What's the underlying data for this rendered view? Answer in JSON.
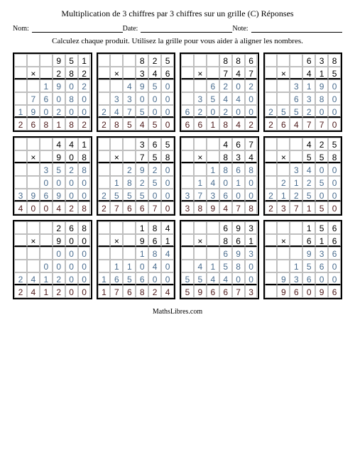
{
  "title": "Multiplication de 3 chiffres par 3 chiffres sur un grille (C) Réponses",
  "header": {
    "nom": "Nom:",
    "date": "Date:",
    "note": "Note:"
  },
  "instruction": "Calculez chaque produit. Utilisez la grille pour vous aider à aligner les nombres.",
  "footer": "MathsLibres.com",
  "colors": {
    "operand": "#000000",
    "partial": "#4a6d8f",
    "result": "#4d1a1a",
    "grid": "#bfbfbf"
  },
  "mult_sign": "×",
  "problems": [
    {
      "a": "951",
      "b": "282",
      "partials": [
        "1902",
        "76080",
        "190200"
      ],
      "result": "268182"
    },
    {
      "a": "825",
      "b": "346",
      "partials": [
        "4950",
        "33000",
        "247500"
      ],
      "result": "285450"
    },
    {
      "a": "886",
      "b": "747",
      "partials": [
        "6202",
        "35440",
        "620200"
      ],
      "result": "661842"
    },
    {
      "a": "638",
      "b": "415",
      "partials": [
        "3190",
        "6380",
        "255200"
      ],
      "result": "264770"
    },
    {
      "a": "441",
      "b": "908",
      "partials": [
        "3528",
        "0000",
        "396900"
      ],
      "result": "400428"
    },
    {
      "a": "365",
      "b": "758",
      "partials": [
        "2920",
        "18250",
        "255500"
      ],
      "result": "276670"
    },
    {
      "a": "467",
      "b": "834",
      "partials": [
        "1868",
        "14010",
        "373600"
      ],
      "result": "389478"
    },
    {
      "a": "425",
      "b": "558",
      "partials": [
        "3400",
        "21250",
        "212500"
      ],
      "result": "237150"
    },
    {
      "a": "268",
      "b": "900",
      "partials": [
        "000",
        "0000",
        "241200"
      ],
      "result": "241200"
    },
    {
      "a": "184",
      "b": "961",
      "partials": [
        "184",
        "11040",
        "165600"
      ],
      "result": "176824"
    },
    {
      "a": "693",
      "b": "861",
      "partials": [
        "693",
        "41580",
        "554400"
      ],
      "result": "596673"
    },
    {
      "a": "156",
      "b": "616",
      "partials": [
        "936",
        "1560",
        "93600"
      ],
      "result": "96096"
    }
  ]
}
